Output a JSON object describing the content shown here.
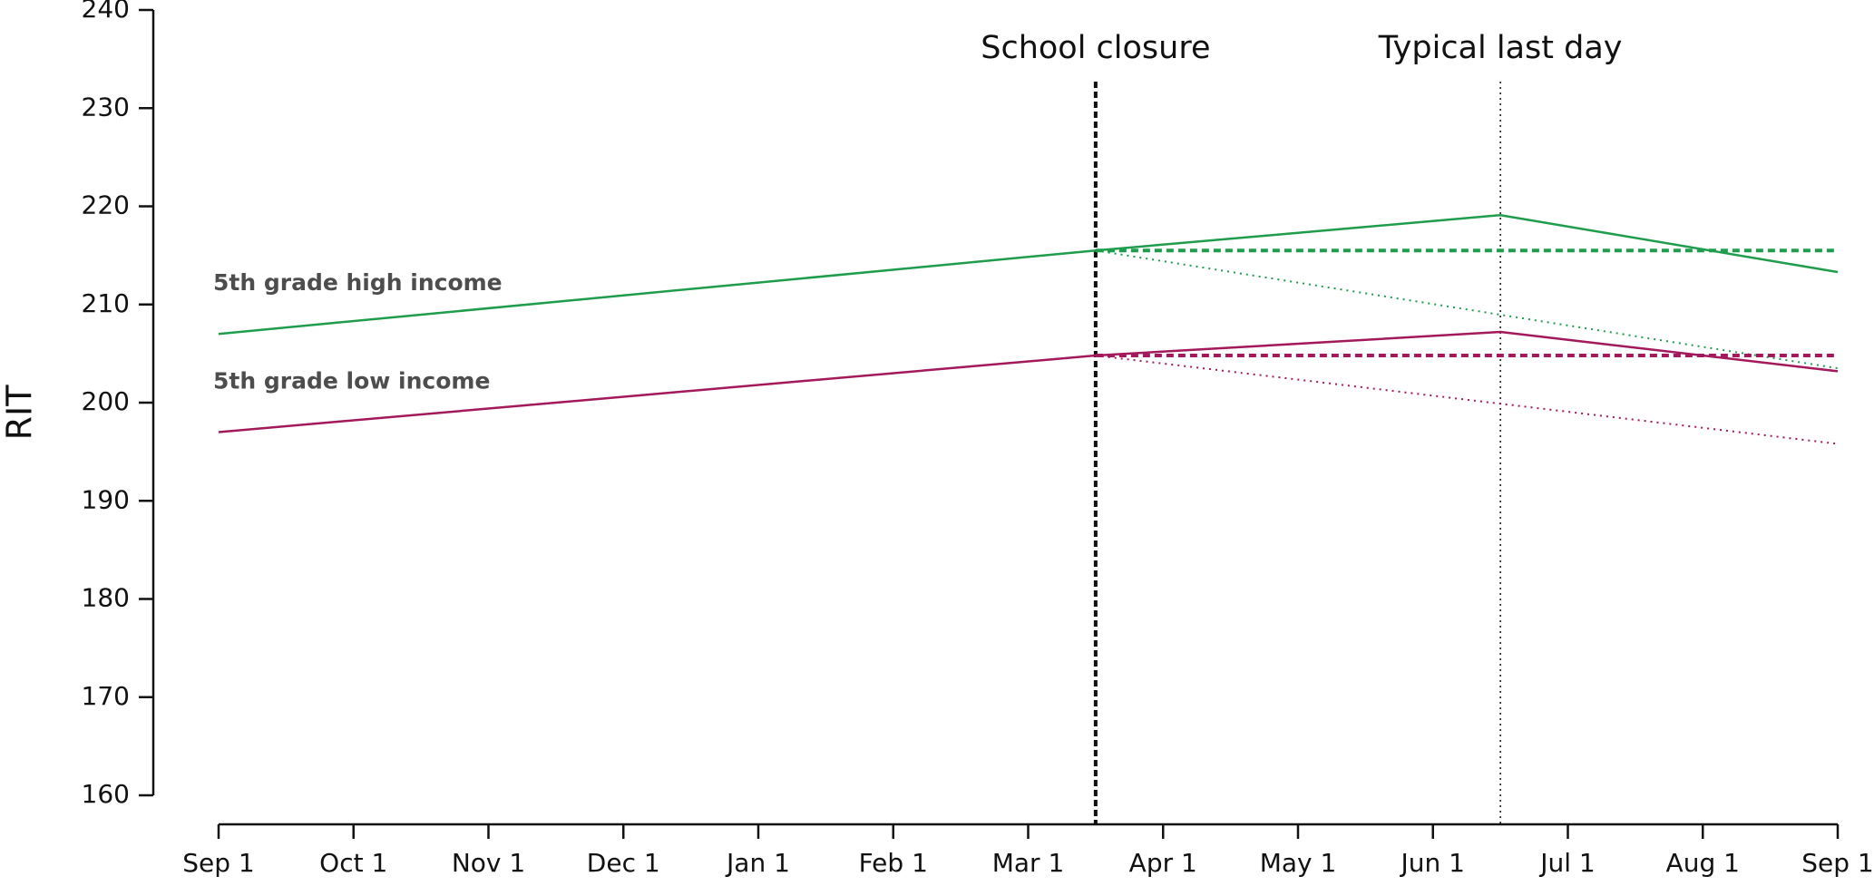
{
  "chart_data": {
    "type": "line",
    "y_label": "RIT",
    "xlim": [
      0,
      12
    ],
    "xticks": [
      {
        "value": 0,
        "label": "Sep 1"
      },
      {
        "value": 1,
        "label": "Oct 1"
      },
      {
        "value": 2,
        "label": "Nov 1"
      },
      {
        "value": 3,
        "label": "Dec 1"
      },
      {
        "value": 4,
        "label": "Jan 1"
      },
      {
        "value": 5,
        "label": "Feb 1"
      },
      {
        "value": 6,
        "label": "Mar 1"
      },
      {
        "value": 7,
        "label": "Apr 1"
      },
      {
        "value": 8,
        "label": "May 1"
      },
      {
        "value": 9,
        "label": "Jun 1"
      },
      {
        "value": 10,
        "label": "Jul 1"
      },
      {
        "value": 11,
        "label": "Aug 1"
      },
      {
        "value": 12,
        "label": "Sep 1"
      }
    ],
    "ylim": [
      160,
      240
    ],
    "yticks": [
      160,
      170,
      180,
      190,
      200,
      210,
      220,
      230,
      240
    ],
    "annotations": [
      {
        "label": "School closure",
        "x": 6.5,
        "style": "dashed"
      },
      {
        "label": "Typical last day",
        "x": 9.5,
        "style": "dotted"
      }
    ],
    "series": [
      {
        "name": "5th grade high income",
        "color": "#1f9d4c",
        "style": "solid",
        "x": [
          0,
          6.5,
          9.5,
          12
        ],
        "values": [
          207,
          215.5,
          219.1,
          213.3
        ]
      },
      {
        "color": "#1f9d4c",
        "style": "dashed",
        "x": [
          6.5,
          12
        ],
        "values": [
          215.5,
          215.5
        ]
      },
      {
        "color": "#1f9d4c",
        "style": "dotted",
        "x": [
          6.5,
          12
        ],
        "values": [
          215.5,
          203.5
        ]
      },
      {
        "name": "5th grade low income",
        "color": "#a3195b",
        "style": "solid",
        "x": [
          0,
          6.5,
          9.5,
          12
        ],
        "values": [
          197,
          204.8,
          207.2,
          203.2
        ]
      },
      {
        "color": "#a3195b",
        "style": "dashed",
        "x": [
          6.5,
          12
        ],
        "values": [
          204.8,
          204.8
        ]
      },
      {
        "color": "#a3195b",
        "style": "dotted",
        "x": [
          6.5,
          12
        ],
        "values": [
          204.8,
          195.8
        ]
      }
    ]
  }
}
